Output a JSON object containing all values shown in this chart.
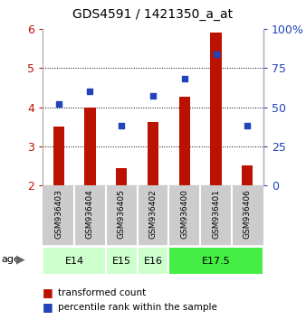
{
  "title": "GDS4591 / 1421350_a_at",
  "samples": [
    "GSM936403",
    "GSM936404",
    "GSM936405",
    "GSM936402",
    "GSM936400",
    "GSM936401",
    "GSM936406"
  ],
  "bar_values": [
    3.5,
    4.0,
    2.45,
    3.62,
    4.27,
    5.9,
    2.52
  ],
  "dot_values_pct": [
    52,
    60,
    38,
    57,
    68,
    84,
    38
  ],
  "bar_color": "#bb1100",
  "dot_color": "#2244bb",
  "ylim_left": [
    2,
    6
  ],
  "ylim_right": [
    0,
    100
  ],
  "yticks_left": [
    2,
    3,
    4,
    5,
    6
  ],
  "yticks_right": [
    0,
    25,
    50,
    75,
    100
  ],
  "ytick_labels_left": [
    "2",
    "3",
    "4",
    "5",
    "6"
  ],
  "ytick_labels_right": [
    "0",
    "25",
    "50",
    "75",
    "100%"
  ],
  "grid_lines": [
    3,
    4,
    5
  ],
  "bar_bottom": 2.0,
  "bar_width": 0.35,
  "age_groups": [
    {
      "label": "E14",
      "indices": [
        0,
        1
      ],
      "color": "#ccffcc"
    },
    {
      "label": "E15",
      "indices": [
        2
      ],
      "color": "#ccffcc"
    },
    {
      "label": "E16",
      "indices": [
        3
      ],
      "color": "#ccffcc"
    },
    {
      "label": "E17.5",
      "indices": [
        4,
        5,
        6
      ],
      "color": "#44ee44"
    }
  ],
  "label_box_color": "#cccccc",
  "age_label_fontsize": 8,
  "sample_label_fontsize": 6.5,
  "tick_fontsize": 9,
  "title_fontsize": 10
}
